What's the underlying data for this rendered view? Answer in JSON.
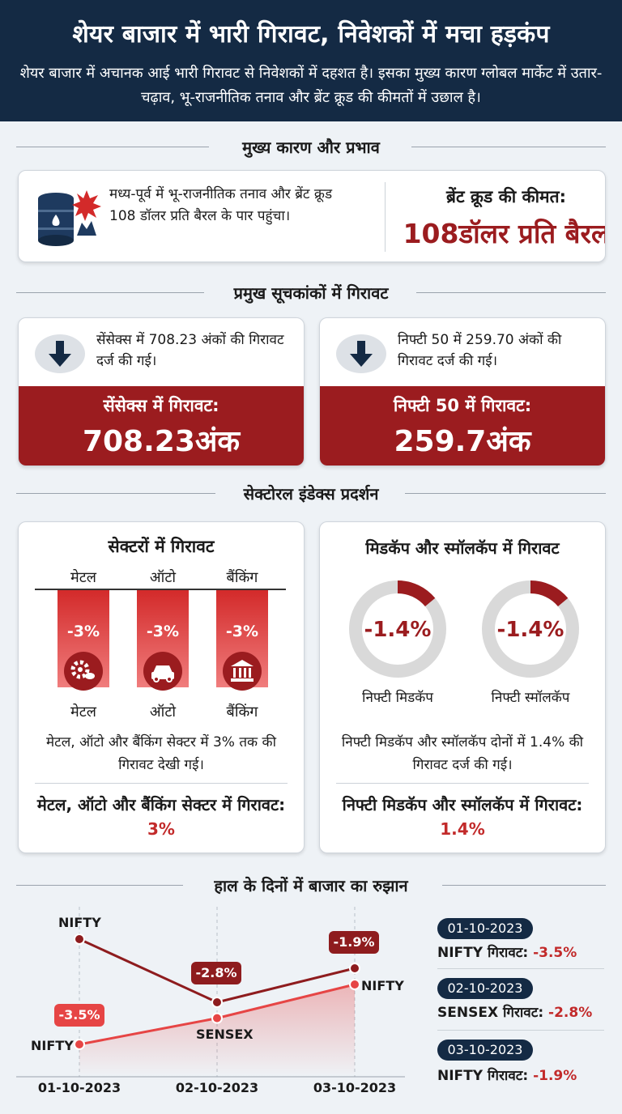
{
  "header": {
    "title": "शेयर बाजार में भारी गिरावट, निवेशकों में मचा हड़कंप",
    "subtitle": "शेयर बाजार में अचानक आई भारी गिरावट से निवेशकों में दहशत है। इसका मुख्य कारण ग्लोबल मार्केट में उतार-चढ़ाव, भू-राजनीतिक तनाव और ब्रेंट क्रूड की कीमतों में उछाल है।"
  },
  "causes": {
    "title": "मुख्य कारण और प्रभाव",
    "icon": "oil-barrel-explosion-icon",
    "text": "मध्य-पूर्व में भू-राजनीतिक तनाव और ब्रेंट क्रूड 108 डॉलर प्रति बैरल के पार पहुंचा।",
    "brent_label": "ब्रेंट क्रूड की कीमत:",
    "brent_value": "108डॉलर प्रति बैरल"
  },
  "indices": {
    "title": "प्रमुख सूचकांकों में गिरावट",
    "sensex": {
      "desc": "सेंसेक्स में 708.23 अंकों की गिरावट दर्ज की गई।",
      "label": "सेंसेक्स में गिरावट:",
      "value": "708.23अंक"
    },
    "nifty": {
      "desc": "निफ्टी 50 में 259.70 अंकों की गिरावट दर्ज की गई।",
      "label": "निफ्टी 50 में गिरावट:",
      "value": "259.7अंक"
    }
  },
  "sectoral": {
    "title": "सेक्टोरल इंडेक्स प्रदर्शन",
    "sectors": {
      "title": "सेक्टरों में गिरावट",
      "bars": [
        {
          "top_label": "मेटल",
          "pct": "-3%",
          "value": -3,
          "bottom_label": "मेटल",
          "icon": "gear-icon"
        },
        {
          "top_label": "ऑटो",
          "pct": "-3%",
          "value": -3,
          "bottom_label": "ऑटो",
          "icon": "car-icon"
        },
        {
          "top_label": "बैंकिंग",
          "pct": "-3%",
          "value": -3,
          "bottom_label": "बैंकिंग",
          "icon": "bank-icon"
        }
      ],
      "note": "मेटल, ऑटो और बैंकिंग सेक्टर में 3% तक की गिरावट देखी गई।",
      "summary_prefix": "मेटल, ऑटो और बैंकिंग सेक्टर में गिरावट:",
      "summary_value": "3%"
    },
    "midsmall": {
      "title": "मिडकॅप और स्मॉलकॅप में गिरावट",
      "donuts": [
        {
          "label": "निफ्टी मिडकॅप",
          "pct": "-1.4%",
          "value": 1.4
        },
        {
          "label": "निफ्टी स्मॉलकॅप",
          "pct": "-1.4%",
          "value": 1.4
        }
      ],
      "note": "निफ्टी मिडकॅप और स्मॉलकॅप दोनों में 1.4% की गिरावट दर्ज की गई।",
      "summary_prefix": "निफ्टी मिडकॅप और स्मॉलकॅप में गिरावट:",
      "summary_value": "1.4%"
    }
  },
  "trend": {
    "title": "हाल के दिनों में बाजार का रुझान",
    "colors": {
      "dark": "#8e1c1e",
      "light": "#e64545"
    },
    "legend": [
      {
        "date": "01-10-2023",
        "label": "NIFTY गिरावट:",
        "value": "-3.5%"
      },
      {
        "date": "02-10-2023",
        "label": "SENSEX गिरावट:",
        "value": "-2.8%"
      },
      {
        "date": "03-10-2023",
        "label": "NIFTY गिरावट:",
        "value": "-1.9%"
      }
    ]
  },
  "chart_data": {
    "type": "line",
    "x": [
      "01-10-2023",
      "02-10-2023",
      "03-10-2023"
    ],
    "series": [
      {
        "values": [
          -3.5,
          -2.8,
          -1.9
        ],
        "point_labels": [
          "NIFTY",
          "",
          "NIFTY"
        ]
      },
      {
        "values": [
          -3.5,
          -2.8,
          -1.9
        ],
        "point_labels": [
          "NIFTY",
          "SENSEX",
          "NIFTY"
        ]
      }
    ],
    "data_labels": [
      "-3.5%",
      "-2.8%",
      "-1.9%"
    ],
    "grid": "vertical dashed"
  }
}
